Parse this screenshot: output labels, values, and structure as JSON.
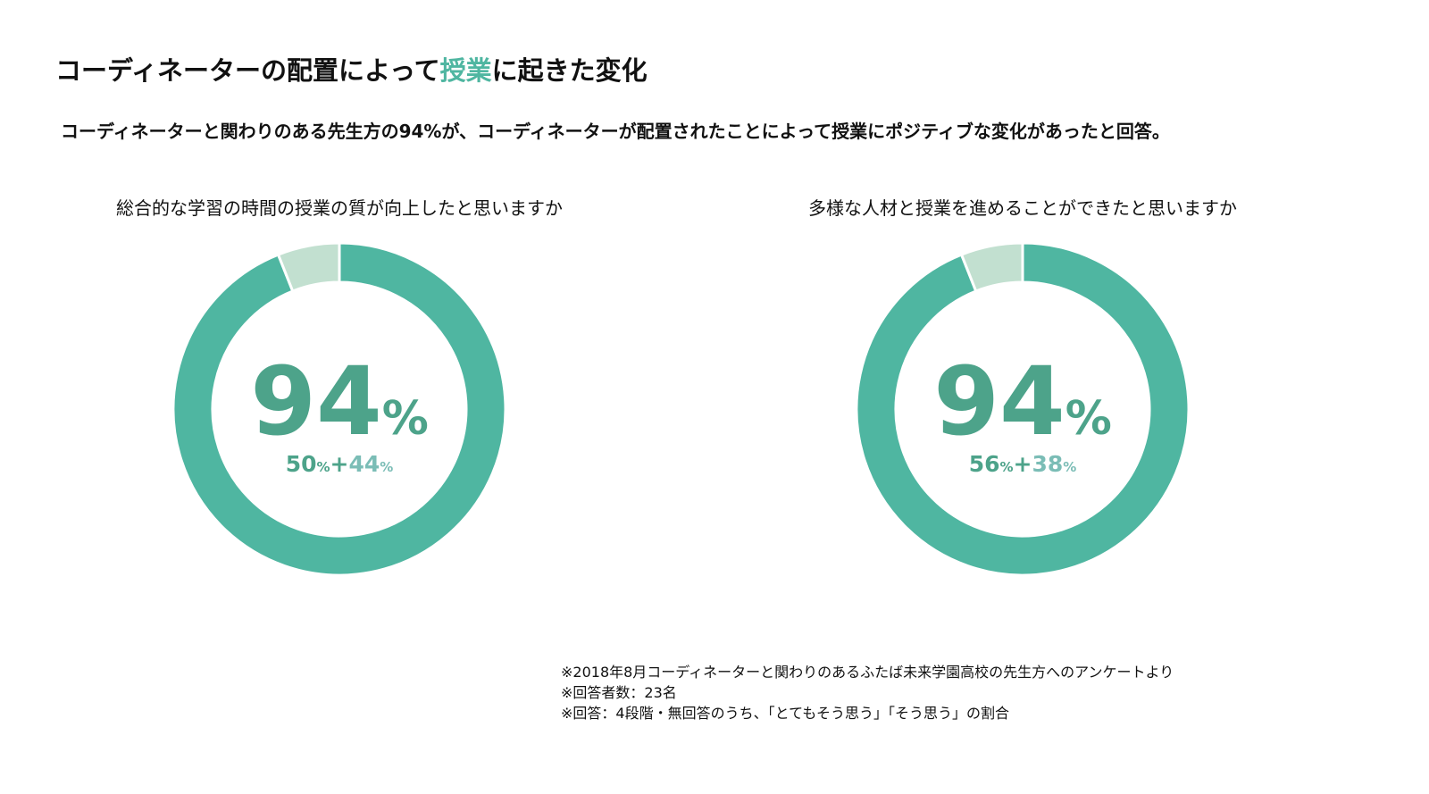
{
  "title": {
    "prefix": "コーディネーターの配置によって",
    "highlight": "授業",
    "suffix": "に起きた変化"
  },
  "subtitle": "コーディネーターと関わりのある先生方の94%が、コーディネーターが配置されたことによって授業にポジティブな変化があったと回答。",
  "colors": {
    "accent": "#4fb6a1",
    "light": "#c2e0d0",
    "main_text": "#4da38a",
    "sub_b": "#7bbdb6"
  },
  "chart_data": [
    {
      "type": "pie",
      "question": "総合的な学習の時間の授業の質が向上したと思いますか",
      "center_value": "94",
      "center_unit": "%",
      "breakdown": {
        "a": "50",
        "a_unit": "%",
        "plus": "+",
        "b": "44",
        "b_unit": "%"
      },
      "slices": [
        {
          "value": 94,
          "color": "#4fb6a1"
        },
        {
          "value": 6,
          "color": "#c2e0d0"
        }
      ]
    },
    {
      "type": "pie",
      "question": "多様な人材と授業を進めることができたと思いますか",
      "center_value": "94",
      "center_unit": "%",
      "breakdown": {
        "a": "56",
        "a_unit": "%",
        "plus": "+",
        "b": "38",
        "b_unit": "%"
      },
      "slices": [
        {
          "value": 94,
          "color": "#4fb6a1"
        },
        {
          "value": 6,
          "color": "#c2e0d0"
        }
      ]
    }
  ],
  "notes": [
    "※2018年8月コーディネーターと関わりのあるふたば未来学園高校の先生方へのアンケートより",
    "※回答者数：23名",
    "※回答：4段階・無回答のうち、「とてもそう思う」「そう思う」の割合"
  ]
}
